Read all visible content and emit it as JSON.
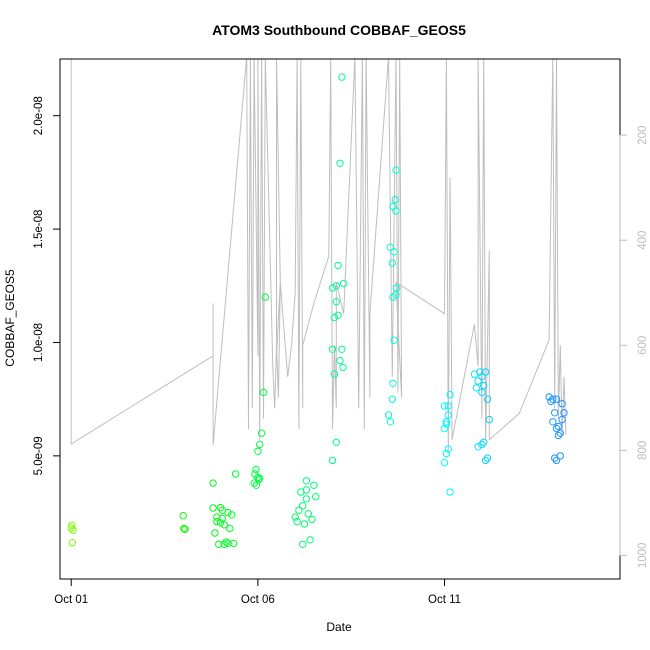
{
  "chart_data": {
    "type": "scatter",
    "title": "ATOM3 Southbound COBBAF_GEOS5",
    "xlabel": "Date",
    "ylabel": "COBBAF_GEOS5",
    "x_axis": {
      "range_days": [
        -0.3,
        14.7
      ],
      "ticks": [
        {
          "value": 0,
          "label": "Oct 01"
        },
        {
          "value": 5,
          "label": "Oct 06"
        },
        {
          "value": 10,
          "label": "Oct 11"
        }
      ]
    },
    "y_axis": {
      "range": [
        -4.3e-10,
        2.25e-08
      ],
      "ticks": [
        {
          "value": 5e-09,
          "label": "5.0e-09"
        },
        {
          "value": 1e-08,
          "label": "1.0e-08"
        },
        {
          "value": 1.5e-08,
          "label": "1.5e-08"
        },
        {
          "value": 2e-08,
          "label": "2.0e-08"
        }
      ]
    },
    "y2_axis": {
      "range": [
        1045,
        55
      ],
      "ticks": [
        {
          "value": 200,
          "label": "200"
        },
        {
          "value": 400,
          "label": "400"
        },
        {
          "value": 600,
          "label": "600"
        },
        {
          "value": 800,
          "label": "800"
        },
        {
          "value": 1000,
          "label": "1000"
        }
      ]
    },
    "pressure_line_color": "#bebebe",
    "color_gradient": [
      "#7cfc00",
      "#00ff00",
      "#00ff7f",
      "#00ffff",
      "#1e90ff"
    ],
    "pressure_profile": [
      [
        0,
        50
      ],
      [
        0,
        788
      ],
      [
        3.8,
        620
      ],
      [
        3.8,
        520
      ],
      [
        3.8,
        790
      ],
      [
        4.7,
        50
      ],
      [
        4.75,
        760
      ],
      [
        4.8,
        50
      ],
      [
        4.85,
        720
      ],
      [
        4.9,
        50
      ],
      [
        5.0,
        620
      ],
      [
        5.0,
        50
      ],
      [
        5.05,
        780
      ],
      [
        5.1,
        50
      ],
      [
        5.15,
        740
      ],
      [
        5.2,
        50
      ],
      [
        5.4,
        640
      ],
      [
        5.45,
        720
      ],
      [
        5.5,
        600
      ],
      [
        5.55,
        700
      ],
      [
        5.6,
        480
      ],
      [
        5.5,
        620
      ],
      [
        5.5,
        50
      ],
      [
        5.6,
        480
      ],
      [
        5.8,
        660
      ],
      [
        5.9,
        600
      ],
      [
        6.0,
        500
      ],
      [
        6.05,
        50
      ],
      [
        6.1,
        760
      ],
      [
        6.15,
        50
      ],
      [
        6.2,
        720
      ],
      [
        6.2,
        600
      ],
      [
        6.5,
        520
      ],
      [
        6.9,
        430
      ],
      [
        6.95,
        50
      ],
      [
        7.0,
        760
      ],
      [
        7.05,
        600
      ],
      [
        7.1,
        720
      ],
      [
        7.1,
        480
      ],
      [
        7.3,
        540
      ],
      [
        7.6,
        50
      ],
      [
        7.7,
        720
      ],
      [
        7.8,
        50
      ],
      [
        7.85,
        760
      ],
      [
        7.9,
        50
      ],
      [
        8.0,
        700
      ],
      [
        8.0,
        540
      ],
      [
        8.5,
        50
      ],
      [
        8.6,
        660
      ],
      [
        8.7,
        50
      ],
      [
        8.75,
        690
      ],
      [
        8.8,
        50
      ],
      [
        8.85,
        700
      ],
      [
        8.7,
        480
      ],
      [
        10.0,
        540
      ],
      [
        10.05,
        50
      ],
      [
        10.1,
        800
      ],
      [
        10.15,
        280
      ],
      [
        10.2,
        760
      ],
      [
        10.2,
        780
      ],
      [
        10.8,
        560
      ],
      [
        10.9,
        640
      ],
      [
        10.9,
        50
      ],
      [
        11.0,
        740
      ],
      [
        11.05,
        50
      ],
      [
        11.1,
        780
      ],
      [
        11.2,
        420
      ],
      [
        11.2,
        780
      ],
      [
        12.0,
        730
      ],
      [
        12.8,
        590
      ],
      [
        12.9,
        50
      ],
      [
        12.95,
        720
      ],
      [
        13.0,
        50
      ],
      [
        13.05,
        740
      ],
      [
        13.1,
        600
      ],
      [
        13.15,
        770
      ],
      [
        13.2,
        660
      ],
      [
        13.25,
        770
      ]
    ],
    "points": [
      [
        0.0,
        1.82e-09
      ],
      [
        0.02,
        1.94e-09
      ],
      [
        0.05,
        1.72e-09
      ],
      [
        0.03,
        1.17e-09
      ],
      [
        3.0,
        2.36e-09
      ],
      [
        3.02,
        1.8e-09
      ],
      [
        3.05,
        1.76e-09
      ],
      [
        3.8,
        2.7e-09
      ],
      [
        3.85,
        1.6e-09
      ],
      [
        3.9,
        2.1e-09
      ],
      [
        3.95,
        1.1e-09
      ],
      [
        3.8,
        3.8e-09
      ],
      [
        4.0,
        2.72e-09
      ],
      [
        4.05,
        2.24e-09
      ],
      [
        4.1,
        1.96e-09
      ],
      [
        4.1,
        1.1e-09
      ],
      [
        4.15,
        1.2e-09
      ],
      [
        4.2,
        2.5e-09
      ],
      [
        4.25,
        1.8e-09
      ],
      [
        4.3,
        2.4e-09
      ],
      [
        4.35,
        1.14e-09
      ],
      [
        4.4,
        4.2e-09
      ],
      [
        4.0,
        2.05e-09
      ],
      [
        3.9,
        2.3e-09
      ],
      [
        4.2,
        1.15e-09
      ],
      [
        4.05,
        2.6e-09
      ],
      [
        4.9,
        3.8e-09
      ],
      [
        4.92,
        4.2e-09
      ],
      [
        4.95,
        4.4e-09
      ],
      [
        4.96,
        3.7e-09
      ],
      [
        5.0,
        4.05e-09
      ],
      [
        5.02,
        3.95e-09
      ],
      [
        5.05,
        4e-09
      ],
      [
        5.0,
        5.2e-09
      ],
      [
        5.05,
        5.5e-09
      ],
      [
        5.1,
        6e-09
      ],
      [
        5.15,
        7.8e-09
      ],
      [
        5.2,
        1.2e-08
      ],
      [
        6.0,
        2.3e-09
      ],
      [
        6.05,
        2.1e-09
      ],
      [
        6.1,
        2.6e-09
      ],
      [
        6.15,
        3.4e-09
      ],
      [
        6.2,
        2.8e-09
      ],
      [
        6.2,
        1.1e-09
      ],
      [
        6.25,
        2e-09
      ],
      [
        6.3,
        3.9e-09
      ],
      [
        6.3,
        3.1e-09
      ],
      [
        6.3,
        3.5e-09
      ],
      [
        6.35,
        2.45e-09
      ],
      [
        6.4,
        1.3e-09
      ],
      [
        6.45,
        2.2e-09
      ],
      [
        6.5,
        3.7e-09
      ],
      [
        6.55,
        3.2e-09
      ],
      [
        7.0,
        4.8e-09
      ],
      [
        7.05,
        8.6e-09
      ],
      [
        7.1,
        5.6e-09
      ],
      [
        7.0,
        9.7e-09
      ],
      [
        7.05,
        1.11e-08
      ],
      [
        7.1,
        1.25e-08
      ],
      [
        7.15,
        1.34e-08
      ],
      [
        7.2,
        1.79e-08
      ],
      [
        7.25,
        2.17e-08
      ],
      [
        7.2,
        9.2e-09
      ],
      [
        7.1,
        1.18e-08
      ],
      [
        7.0,
        1.24e-08
      ],
      [
        7.15,
        1.12e-08
      ],
      [
        7.25,
        9.7e-09
      ],
      [
        7.3,
        1.26e-08
      ],
      [
        7.28,
        8.9e-09
      ],
      [
        8.5,
        6.8e-09
      ],
      [
        8.55,
        6.5e-09
      ],
      [
        8.6,
        7.5e-09
      ],
      [
        8.62,
        8.2e-09
      ],
      [
        8.65,
        1.01e-08
      ],
      [
        8.7,
        1.21e-08
      ],
      [
        8.72,
        1.24e-08
      ],
      [
        8.55,
        1.42e-08
      ],
      [
        8.6,
        1.35e-08
      ],
      [
        8.65,
        1.4e-08
      ],
      [
        8.62,
        1.6e-08
      ],
      [
        8.7,
        1.58e-08
      ],
      [
        8.68,
        1.63e-08
      ],
      [
        8.7,
        1.76e-08
      ],
      [
        8.62,
        1.2e-08
      ],
      [
        10.0,
        4.7e-09
      ],
      [
        10.05,
        5.1e-09
      ],
      [
        10.1,
        5.3e-09
      ],
      [
        10.15,
        3.4e-09
      ],
      [
        10.0,
        6.2e-09
      ],
      [
        10.05,
        6.4e-09
      ],
      [
        10.1,
        7.2e-09
      ],
      [
        10.15,
        7.7e-09
      ],
      [
        10.1,
        6.8e-09
      ],
      [
        10.05,
        6.5e-09
      ],
      [
        10.0,
        7.2e-09
      ],
      [
        10.8,
        8.6e-09
      ],
      [
        10.85,
        8e-09
      ],
      [
        10.9,
        8.3e-09
      ],
      [
        10.95,
        8.7e-09
      ],
      [
        11.0,
        7.8e-09
      ],
      [
        11.05,
        8.1e-09
      ],
      [
        11.1,
        8.7e-09
      ],
      [
        11.15,
        7.5e-09
      ],
      [
        11.2,
        6.6e-09
      ],
      [
        11.1,
        4.8e-09
      ],
      [
        11.15,
        4.9e-09
      ],
      [
        11.0,
        5.5e-09
      ],
      [
        11.05,
        5.6e-09
      ],
      [
        10.9,
        5.4e-09
      ],
      [
        11.0,
        8.5e-09
      ],
      [
        12.8,
        7.6e-09
      ],
      [
        12.85,
        7.4e-09
      ],
      [
        12.9,
        6.5e-09
      ],
      [
        12.95,
        6.9e-09
      ],
      [
        13.0,
        7.5e-09
      ],
      [
        13.05,
        6.3e-09
      ],
      [
        13.1,
        6e-09
      ],
      [
        13.15,
        6.6e-09
      ],
      [
        13.2,
        6.9e-09
      ],
      [
        13.1,
        5e-09
      ],
      [
        13.0,
        4.8e-09
      ],
      [
        12.95,
        4.9e-09
      ],
      [
        13.15,
        7.3e-09
      ],
      [
        12.9,
        7.5e-09
      ],
      [
        13.0,
        6.2e-09
      ],
      [
        13.05,
        5.9e-09
      ]
    ]
  }
}
